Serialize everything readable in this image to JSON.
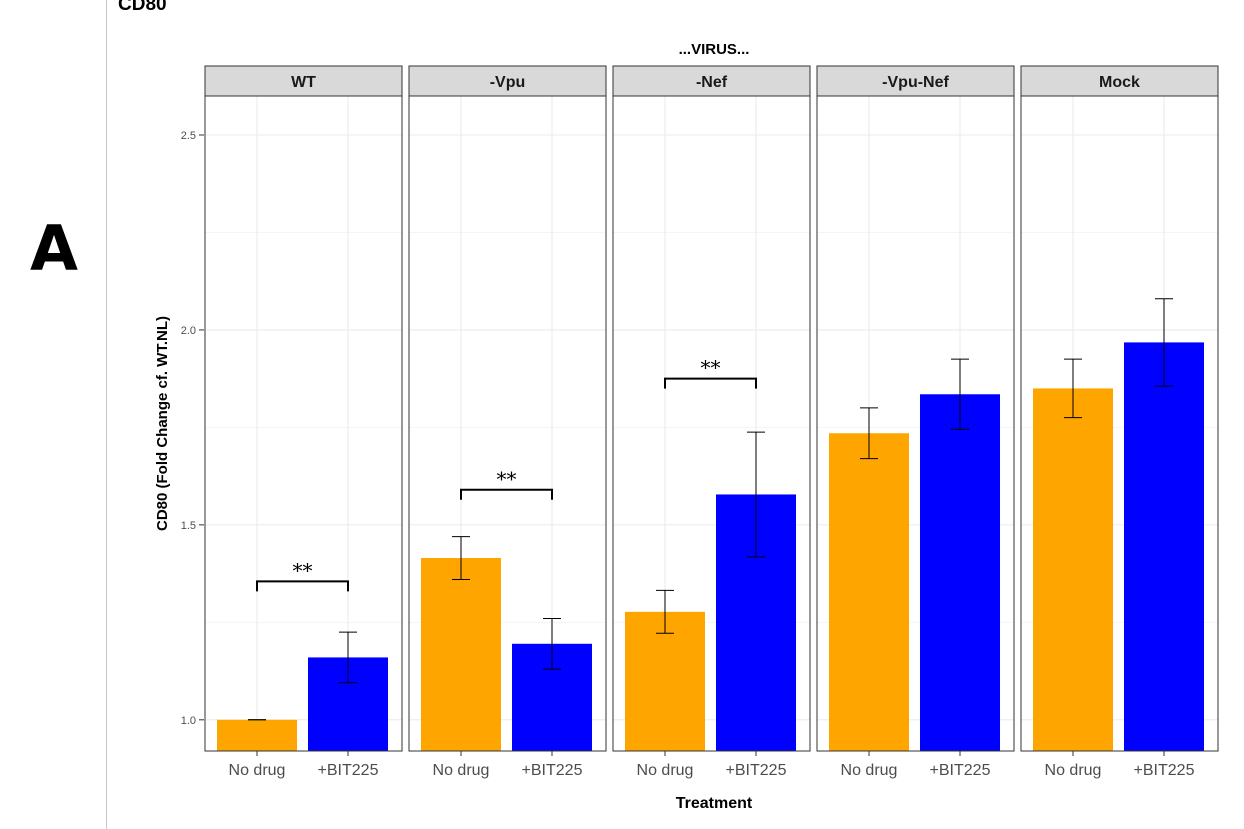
{
  "figure": {
    "corner_title": "CD80",
    "panel_letter": "A"
  },
  "chart_data": {
    "type": "bar",
    "title": "...VIRUS...",
    "xlabel": "Treatment",
    "ylabel": "CD80 (Fold Change cf. WT.NL)",
    "ylim": [
      0.92,
      2.6
    ],
    "y_ticks": [
      1.0,
      1.5,
      2.0,
      2.5
    ],
    "y_tick_labels": [
      "1.0",
      "1.5",
      "2.0",
      "2.5"
    ],
    "grid": true,
    "categories": [
      "No drug",
      "+BIT225"
    ],
    "colors": {
      "No drug": "#FFA500",
      "+BIT225": "#0000FF",
      "strip_bg": "#D9D9D9",
      "grid_major": "#EBEBEB",
      "grid_minor": "#F5F5F5",
      "panel_border": "#333333"
    },
    "facets": [
      {
        "name": "WT",
        "values": [
          1.0,
          1.16
        ],
        "errors": [
          0.0,
          0.065
        ],
        "significance": "**",
        "bracket_y": 1.355
      },
      {
        "name": "-Vpu",
        "values": [
          1.415,
          1.195
        ],
        "errors": [
          0.055,
          0.065
        ],
        "significance": "**",
        "bracket_y": 1.59
      },
      {
        "name": "-Nef",
        "values": [
          1.277,
          1.578
        ],
        "errors": [
          0.055,
          0.16
        ],
        "significance": "**",
        "bracket_y": 1.875
      },
      {
        "name": "-Vpu-Nef",
        "values": [
          1.735,
          1.835
        ],
        "errors": [
          0.065,
          0.09
        ],
        "significance": "",
        "bracket_y": null
      },
      {
        "name": "Mock",
        "values": [
          1.85,
          1.968
        ],
        "errors": [
          0.075,
          0.112
        ],
        "significance": "",
        "bracket_y": null
      }
    ]
  }
}
